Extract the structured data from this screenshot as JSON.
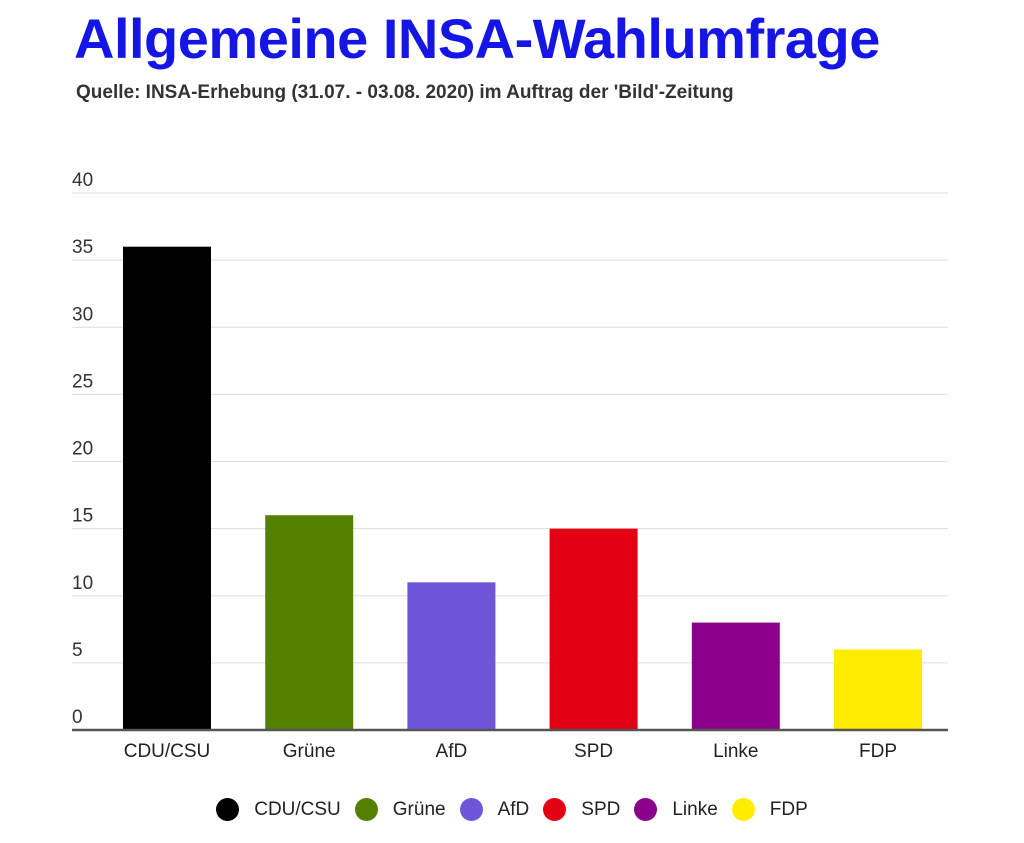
{
  "title": "Allgemeine INSA-Wahlumfrage",
  "subtitle": "Quelle: INSA-Erhebung (31.07. - 03.08. 2020) im Auftrag der 'Bild'-Zeitung",
  "chart_data": {
    "type": "bar",
    "title": "Allgemeine INSA-Wahlumfrage",
    "subtitle": "Quelle: INSA-Erhebung (31.07. - 03.08. 2020) im Auftrag der 'Bild'-Zeitung",
    "xlabel": "",
    "ylabel": "",
    "categories": [
      "CDU/CSU",
      "Grüne",
      "AfD",
      "SPD",
      "Linke",
      "FDP"
    ],
    "values": [
      36,
      16,
      11,
      15,
      8,
      6
    ],
    "colors": [
      "#000000",
      "#548000",
      "#6e56db",
      "#e30013",
      "#8b008b",
      "#ffed00"
    ],
    "ylim": [
      0,
      40
    ],
    "yticks": [
      0,
      5,
      10,
      15,
      20,
      25,
      30,
      35,
      40
    ],
    "grid": true,
    "legend": "bottom-center"
  }
}
